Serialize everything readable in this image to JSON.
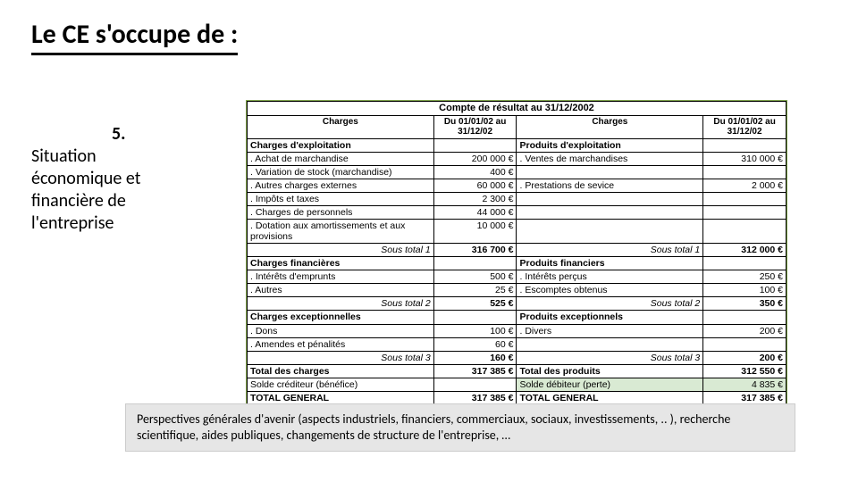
{
  "title": "Le CE s'occupe de :",
  "left": {
    "num": "5.",
    "text": "Situation économique et financière de l'entreprise"
  },
  "table": {
    "caption": "Compte de résultat au 31/12/2002",
    "headers": {
      "charges": "Charges",
      "date": "Du 01/01/02 au 31/12/02"
    },
    "left_sections": [
      {
        "title": "Charges d'exploitation",
        "subtotal_label": "Sous total 1",
        "subtotal": "316 700 €",
        "rows": [
          {
            "l": ". Achat de marchandise",
            "v": "200 000 €"
          },
          {
            "l": ". Variation de stock (marchandise)",
            "v": "400 €"
          },
          {
            "l": ". Autres charges externes",
            "v": "60 000 €"
          },
          {
            "l": ". Impôts et taxes",
            "v": "2 300 €"
          },
          {
            "l": ". Charges de personnels",
            "v": "44 000 €"
          },
          {
            "l": ". Dotation aux amortissements et aux provisions",
            "v": "10 000 €"
          }
        ]
      },
      {
        "title": "Charges financières",
        "subtotal_label": "Sous total 2",
        "subtotal": "525 €",
        "rows": [
          {
            "l": ". Intérêts d'emprunts",
            "v": "500 €"
          },
          {
            "l": ". Autres",
            "v": "25 €"
          }
        ]
      },
      {
        "title": "Charges exceptionnelles",
        "subtotal_label": "Sous total 3",
        "subtotal": "160 €",
        "rows": [
          {
            "l": ". Dons",
            "v": "100 €"
          },
          {
            "l": ". Amendes et pénalités",
            "v": "60 €"
          }
        ]
      }
    ],
    "right_sections": [
      {
        "title": "Produits d'exploitation",
        "subtotal_label": "Sous total 1",
        "subtotal": "312 000 €",
        "rows": [
          {
            "l": ". Ventes de marchandises",
            "v": "310 000 €"
          },
          {
            "l": "",
            "v": ""
          },
          {
            "l": ". Prestations de sevice",
            "v": "2 000 €"
          },
          {
            "l": "",
            "v": ""
          },
          {
            "l": "",
            "v": ""
          },
          {
            "l": "",
            "v": ""
          }
        ]
      },
      {
        "title": "Produits financiers",
        "subtotal_label": "Sous total 2",
        "subtotal": "350 €",
        "rows": [
          {
            "l": ". Intérêts perçus",
            "v": "250 €"
          },
          {
            "l": ". Escomptes obtenus",
            "v": "100 €"
          }
        ]
      },
      {
        "title": "Produits exceptionnels",
        "subtotal_label": "Sous total 3",
        "subtotal": "200 €",
        "rows": [
          {
            "l": ". Divers",
            "v": "200 €"
          },
          {
            "l": "",
            "v": ""
          }
        ]
      }
    ],
    "totals": {
      "left_total_label": "Total des charges",
      "left_total": "317 385 €",
      "right_total_label": "Total des produits",
      "right_total": "312 550 €",
      "left_solde_label": "Solde créditeur (bénéfice)",
      "left_solde": "",
      "right_solde_label": "Solde débiteur (perte)",
      "right_solde": "4 835 €",
      "grand_label": "TOTAL GENERAL",
      "left_grand": "317 385 €",
      "right_grand": "317 385 €"
    }
  },
  "footer": "Perspectives générales d'avenir (aspects industriels, financiers, commerciaux, sociaux, investissements, .. ), recherche scientifique, aides publiques, changements de structure de l'entreprise, …"
}
